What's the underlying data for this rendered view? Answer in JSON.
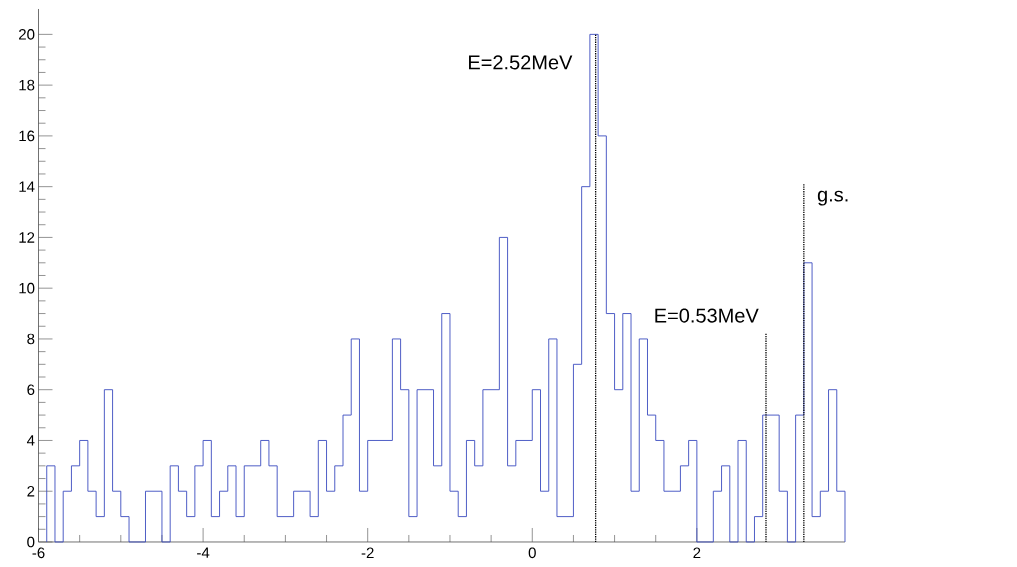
{
  "chart_data": {
    "type": "histogram",
    "xlim": [
      -6,
      3.8
    ],
    "ylim": [
      0,
      21
    ],
    "xticks": [
      -6,
      -4,
      -2,
      0,
      2
    ],
    "yticks": [
      0,
      2,
      4,
      6,
      8,
      10,
      12,
      14,
      16,
      18,
      20
    ],
    "series": [
      {
        "color": "#3b4cc0",
        "bins": [
          -5.9,
          -5.8,
          -5.7,
          -5.6,
          -5.5,
          -5.4,
          -5.3,
          -5.2,
          -5.1,
          -5.0,
          -4.9,
          -4.8,
          -4.7,
          -4.6,
          -4.5,
          -4.4,
          -4.3,
          -4.2,
          -4.1,
          -4.0,
          -3.9,
          -3.8,
          -3.7,
          -3.6,
          -3.5,
          -3.4,
          -3.3,
          -3.2,
          -3.1,
          -3.0,
          -2.9,
          -2.8,
          -2.7,
          -2.6,
          -2.5,
          -2.4,
          -2.3,
          -2.2,
          -2.1,
          -2.0,
          -1.9,
          -1.8,
          -1.7,
          -1.6,
          -1.5,
          -1.4,
          -1.3,
          -1.2,
          -1.1,
          -1.0,
          -0.9,
          -0.8,
          -0.7,
          -0.6,
          -0.5,
          -0.4,
          -0.3,
          -0.2,
          -0.1,
          0.0,
          0.1,
          0.2,
          0.3,
          0.4,
          0.5,
          0.6,
          0.7,
          0.8,
          0.9,
          1.0,
          1.1,
          1.2,
          1.3,
          1.4,
          1.5,
          1.6,
          1.7,
          1.8,
          1.9,
          2.0,
          2.1,
          2.2,
          2.3,
          2.4,
          2.5,
          2.6,
          2.7,
          2.8,
          2.9,
          3.0,
          3.1,
          3.2,
          3.3,
          3.4,
          3.5,
          3.6,
          3.7,
          3.8
        ],
        "values": [
          3,
          0,
          2,
          3,
          4,
          2,
          1,
          6,
          2,
          1,
          0,
          0,
          2,
          2,
          0,
          3,
          2,
          1,
          3,
          4,
          1,
          2,
          3,
          1,
          3,
          3,
          4,
          3,
          1,
          1,
          2,
          2,
          1,
          4,
          2,
          3,
          5,
          8,
          2,
          4,
          4,
          4,
          8,
          6,
          1,
          6,
          6,
          3,
          9,
          2,
          1,
          4,
          3,
          6,
          6,
          12,
          3,
          4,
          4,
          6,
          2,
          8,
          1,
          1,
          7,
          14,
          20,
          16,
          9,
          6,
          9,
          2,
          8,
          5,
          4,
          2,
          2,
          3,
          4,
          0,
          0,
          2,
          3,
          0,
          4,
          0,
          1,
          5,
          5,
          2,
          0,
          5,
          11,
          1,
          2,
          6,
          2
        ]
      },
      {
        "type": "line",
        "color": "#000000",
        "line_style": "dotted",
        "x": [
          0.77,
          0.77
        ],
        "values": [
          0,
          20
        ]
      },
      {
        "type": "line",
        "color": "#000000",
        "line_style": "dotted",
        "x": [
          2.84,
          2.84
        ],
        "values": [
          0,
          8.2
        ]
      },
      {
        "type": "line",
        "color": "#000000",
        "line_style": "dotted",
        "x": [
          3.3,
          3.3
        ],
        "values": [
          0,
          14.1
        ]
      }
    ],
    "annotations": [
      "E=2.52MeV",
      "E=0.53MeV",
      "g.s."
    ]
  }
}
